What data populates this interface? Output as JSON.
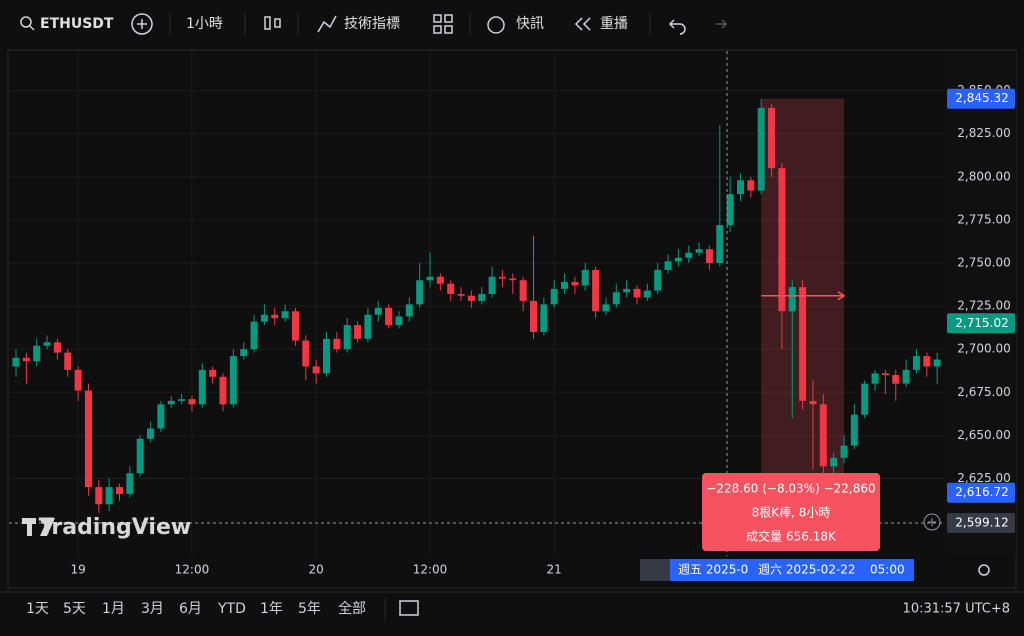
{
  "toolbar": {
    "symbol": "ETHUSDT",
    "interval": "1小時",
    "indicators": "技術指標",
    "alerts": "快訊",
    "replay": "重播"
  },
  "bottom_bar": {
    "ranges": [
      "1天",
      "5天",
      "1月",
      "3月",
      "6月",
      "YTD",
      "1年",
      "5年",
      "全部"
    ],
    "clock": "10:31:57 UTC+8"
  },
  "chart_data": {
    "type": "candlestick",
    "watermark": "TradingView",
    "up_color": "#089981",
    "down_color": "#f23645",
    "ylim": [
      2580,
      2873
    ],
    "yticks": [
      {
        "value": 2850,
        "label": "2,850.00"
      },
      {
        "value": 2825,
        "label": "2,825.00"
      },
      {
        "value": 2800,
        "label": "2,800.00"
      },
      {
        "value": 2775,
        "label": "2,775.00"
      },
      {
        "value": 2750,
        "label": "2,750.00"
      },
      {
        "value": 2725,
        "label": "2,725.00"
      },
      {
        "value": 2700,
        "label": "2,700.00"
      },
      {
        "value": 2675,
        "label": "2,675.00"
      },
      {
        "value": 2650,
        "label": "2,650.00"
      },
      {
        "value": 2625,
        "label": "2,625.00"
      }
    ],
    "xticks": [
      {
        "value": 6,
        "label": "19"
      },
      {
        "value": 17,
        "label": "12:00"
      },
      {
        "value": 29,
        "label": "20"
      },
      {
        "value": 40,
        "label": "12:00"
      },
      {
        "value": 52,
        "label": "21"
      }
    ],
    "ohlc": [
      [
        2690,
        2700,
        2684,
        2695
      ],
      [
        2695,
        2698,
        2680,
        2693
      ],
      [
        2693,
        2706,
        2690,
        2702
      ],
      [
        2702,
        2708,
        2700,
        2704
      ],
      [
        2704,
        2706,
        2694,
        2698
      ],
      [
        2698,
        2700,
        2684,
        2688
      ],
      [
        2688,
        2690,
        2670,
        2676
      ],
      [
        2676,
        2680,
        2615,
        2620
      ],
      [
        2620,
        2624,
        2605,
        2610
      ],
      [
        2610,
        2625,
        2606,
        2620
      ],
      [
        2620,
        2622,
        2612,
        2616
      ],
      [
        2616,
        2632,
        2614,
        2628
      ],
      [
        2628,
        2650,
        2626,
        2648
      ],
      [
        2648,
        2658,
        2646,
        2654
      ],
      [
        2654,
        2670,
        2652,
        2668
      ],
      [
        2668,
        2673,
        2666,
        2670
      ],
      [
        2670,
        2674,
        2668,
        2671
      ],
      [
        2671,
        2673,
        2664,
        2668
      ],
      [
        2668,
        2692,
        2666,
        2688
      ],
      [
        2688,
        2690,
        2680,
        2684
      ],
      [
        2684,
        2686,
        2664,
        2668
      ],
      [
        2668,
        2700,
        2666,
        2696
      ],
      [
        2696,
        2704,
        2694,
        2700
      ],
      [
        2700,
        2720,
        2698,
        2716
      ],
      [
        2716,
        2726,
        2714,
        2720
      ],
      [
        2720,
        2724,
        2714,
        2718
      ],
      [
        2718,
        2726,
        2716,
        2722
      ],
      [
        2722,
        2724,
        2702,
        2705
      ],
      [
        2705,
        2708,
        2682,
        2690
      ],
      [
        2690,
        2694,
        2680,
        2686
      ],
      [
        2686,
        2710,
        2684,
        2706
      ],
      [
        2706,
        2710,
        2698,
        2700
      ],
      [
        2700,
        2718,
        2698,
        2714
      ],
      [
        2714,
        2716,
        2704,
        2706
      ],
      [
        2706,
        2724,
        2704,
        2720
      ],
      [
        2720,
        2728,
        2716,
        2724
      ],
      [
        2724,
        2726,
        2712,
        2714
      ],
      [
        2714,
        2722,
        2712,
        2719
      ],
      [
        2719,
        2730,
        2716,
        2726
      ],
      [
        2726,
        2750,
        2724,
        2740
      ],
      [
        2740,
        2756,
        2736,
        2742
      ],
      [
        2742,
        2744,
        2734,
        2738
      ],
      [
        2738,
        2740,
        2728,
        2732
      ],
      [
        2732,
        2736,
        2728,
        2731
      ],
      [
        2731,
        2734,
        2724,
        2728
      ],
      [
        2728,
        2736,
        2726,
        2732
      ],
      [
        2732,
        2748,
        2730,
        2742
      ],
      [
        2742,
        2746,
        2736,
        2741
      ],
      [
        2741,
        2744,
        2732,
        2740
      ],
      [
        2740,
        2742,
        2722,
        2728
      ],
      [
        2728,
        2766,
        2706,
        2710
      ],
      [
        2710,
        2730,
        2708,
        2726
      ],
      [
        2726,
        2740,
        2724,
        2735
      ],
      [
        2735,
        2744,
        2732,
        2739
      ],
      [
        2739,
        2742,
        2732,
        2737
      ],
      [
        2737,
        2750,
        2734,
        2746
      ],
      [
        2746,
        2748,
        2718,
        2722
      ],
      [
        2722,
        2730,
        2720,
        2726
      ],
      [
        2726,
        2738,
        2724,
        2733
      ],
      [
        2733,
        2740,
        2730,
        2735
      ],
      [
        2735,
        2737,
        2726,
        2730
      ],
      [
        2730,
        2738,
        2728,
        2734
      ],
      [
        2734,
        2750,
        2732,
        2746
      ],
      [
        2746,
        2755,
        2744,
        2751
      ],
      [
        2751,
        2758,
        2748,
        2753
      ],
      [
        2753,
        2760,
        2750,
        2756
      ],
      [
        2756,
        2762,
        2754,
        2758
      ],
      [
        2758,
        2760,
        2746,
        2750
      ],
      [
        2750,
        2830,
        2748,
        2772
      ],
      [
        2772,
        2800,
        2768,
        2790
      ],
      [
        2790,
        2802,
        2786,
        2798
      ],
      [
        2798,
        2800,
        2788,
        2792
      ],
      [
        2792,
        2845,
        2790,
        2840
      ],
      [
        2840,
        2842,
        2800,
        2805
      ],
      [
        2805,
        2808,
        2700,
        2722
      ],
      [
        2722,
        2740,
        2660,
        2736
      ],
      [
        2736,
        2740,
        2665,
        2670
      ],
      [
        2670,
        2682,
        2630,
        2668
      ],
      [
        2668,
        2674,
        2616,
        2632
      ],
      [
        2632,
        2640,
        2628,
        2637
      ],
      [
        2637,
        2650,
        2634,
        2644
      ],
      [
        2644,
        2668,
        2642,
        2662
      ],
      [
        2662,
        2682,
        2660,
        2680
      ],
      [
        2680,
        2688,
        2676,
        2686
      ],
      [
        2686,
        2688,
        2674,
        2685
      ],
      [
        2685,
        2688,
        2670,
        2680
      ],
      [
        2680,
        2694,
        2678,
        2688
      ],
      [
        2688,
        2700,
        2686,
        2696
      ],
      [
        2696,
        2698,
        2684,
        2690
      ],
      [
        2690,
        2698,
        2680,
        2694
      ]
    ],
    "price_labels": [
      {
        "value": 2845.32,
        "label": "2,845.32",
        "color": "#2962ff"
      },
      {
        "value": 2715.02,
        "label": "2,715.02",
        "color": "#089981"
      },
      {
        "value": 2616.72,
        "label": "2,616.72",
        "color": "#2962ff"
      },
      {
        "value": 2599.12,
        "label": "2,599.12",
        "color": "#363a45"
      }
    ],
    "crosshair_x": 68.7,
    "measure": {
      "from_index": 72,
      "to_index": 80,
      "from": 2845.32,
      "to": 2616.72,
      "color": "#f7525f",
      "lines": [
        "−228.60 (−8.03%) −22,860",
        "8根K棒, 8小時",
        "成交量 656.18K"
      ]
    },
    "time_labels": [
      "週五 2025-0",
      "週六 2025-02-22",
      "05:00"
    ]
  }
}
